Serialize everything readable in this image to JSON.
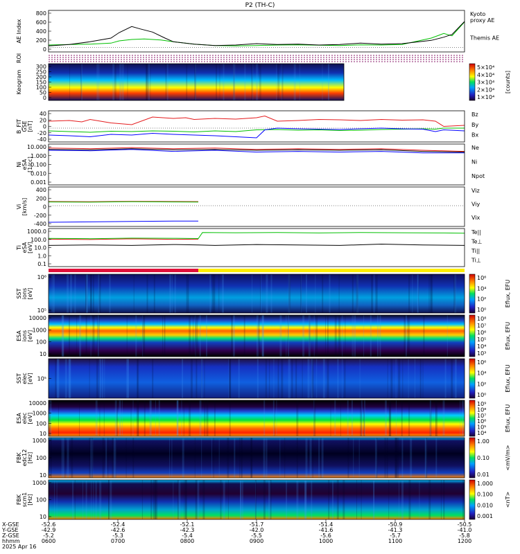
{
  "title": "P2 (TH-C)",
  "colors": {
    "black": "#000000",
    "red": "#e41a1c",
    "green": "#00c000",
    "blue": "#0000ff",
    "kyoto": "#00c000",
    "bar_red": "#e0103a",
    "bar_yellow": "#ffee00"
  },
  "chart_data": [
    {
      "type": "line",
      "panel": "ae",
      "ylabel": "AE Index",
      "yticks": [
        "800",
        "600",
        "400",
        "200",
        "0"
      ],
      "ylim": [
        -100,
        800
      ],
      "series": [
        {
          "name": "Kyoto",
          "label_line2": "proxy AE",
          "color": "green",
          "x": [
            0,
            0.05,
            0.1,
            0.15,
            0.17,
            0.2,
            0.23,
            0.27,
            0.3,
            0.35,
            0.4,
            0.45,
            0.5,
            0.55,
            0.6,
            0.65,
            0.7,
            0.75,
            0.8,
            0.85,
            0.88,
            0.92,
            0.95,
            0.97,
            1.0
          ],
          "y": [
            50,
            60,
            70,
            90,
            140,
            170,
            180,
            160,
            120,
            70,
            40,
            30,
            40,
            50,
            55,
            45,
            40,
            55,
            50,
            60,
            120,
            200,
            300,
            250,
            550
          ]
        },
        {
          "name": "Themis AE",
          "color": "black",
          "x": [
            0,
            0.05,
            0.1,
            0.15,
            0.17,
            0.2,
            0.22,
            0.25,
            0.28,
            0.3,
            0.35,
            0.4,
            0.45,
            0.5,
            0.55,
            0.6,
            0.65,
            0.7,
            0.75,
            0.8,
            0.85,
            0.88,
            0.92,
            0.95,
            0.97,
            1.0
          ],
          "y": [
            30,
            60,
            120,
            200,
            320,
            450,
            400,
            330,
            200,
            120,
            70,
            40,
            50,
            80,
            60,
            70,
            50,
            60,
            90,
            70,
            80,
            110,
            150,
            220,
            280,
            560
          ]
        }
      ]
    },
    {
      "type": "heatmap",
      "panel": "roi",
      "ylabel": "ROI"
    },
    {
      "type": "heatmap",
      "panel": "keogram",
      "ylabel": "Keogram",
      "yticks": [
        "300",
        "250",
        "200",
        "150",
        "100",
        "50",
        "0"
      ],
      "colorbar_ticks": [
        "5×10⁴",
        "4×10⁴",
        "3×10⁴",
        "2×10⁴",
        "1×10⁴"
      ],
      "colorbar_label": "[counts]",
      "coverage_end_fraction": 0.71
    },
    {
      "type": "line",
      "panel": "bfield",
      "ylabel": "B_FIT",
      "ylabel2": "GSE",
      "ylabel3": "[nT]",
      "yticks": [
        "40",
        "20",
        "0",
        "-20",
        "-40"
      ],
      "ylim": [
        -40,
        50
      ],
      "series": [
        {
          "name": "Bz",
          "color": "red",
          "x": [
            0,
            0.05,
            0.08,
            0.1,
            0.15,
            0.2,
            0.25,
            0.3,
            0.33,
            0.35,
            0.4,
            0.45,
            0.5,
            0.52,
            0.55,
            0.6,
            0.65,
            0.7,
            0.75,
            0.8,
            0.85,
            0.9,
            0.93,
            0.95,
            1.0
          ],
          "y": [
            20,
            22,
            18,
            25,
            15,
            10,
            32,
            28,
            30,
            25,
            28,
            26,
            30,
            35,
            20,
            22,
            25,
            24,
            22,
            25,
            23,
            24,
            20,
            5,
            8
          ]
        },
        {
          "name": "By",
          "color": "green",
          "x": [
            0,
            0.05,
            0.1,
            0.15,
            0.2,
            0.25,
            0.3,
            0.35,
            0.4,
            0.45,
            0.5,
            0.55,
            0.6,
            0.65,
            0.7,
            0.75,
            0.8,
            0.85,
            0.9,
            0.93,
            0.95,
            1.0
          ],
          "y": [
            -8,
            -10,
            -12,
            -9,
            -10,
            -8,
            -9,
            -11,
            -8,
            -10,
            -5,
            -4,
            -6,
            -5,
            -7,
            -6,
            -4,
            -3,
            -2,
            -3,
            0,
            0
          ]
        },
        {
          "name": "Bx",
          "color": "blue",
          "x": [
            0,
            0.05,
            0.1,
            0.15,
            0.2,
            0.25,
            0.3,
            0.35,
            0.4,
            0.45,
            0.5,
            0.52,
            0.55,
            0.6,
            0.65,
            0.7,
            0.75,
            0.8,
            0.85,
            0.9,
            0.93,
            0.95,
            1.0
          ],
          "y": [
            -20,
            -22,
            -25,
            -18,
            -20,
            -15,
            -18,
            -20,
            -22,
            -25,
            -28,
            -5,
            0,
            -2,
            -3,
            -4,
            -2,
            0,
            -2,
            -3,
            -10,
            -5,
            -8
          ]
        }
      ]
    },
    {
      "type": "line",
      "panel": "density",
      "ylabel": "Ni",
      "ylabel2": "eSA",
      "ylabel3": "[1/cc]",
      "yticks": [
        "10.000",
        "1.000",
        "0.100",
        "0.010",
        "0.001"
      ],
      "log": true,
      "ylim": [
        0.0005,
        20
      ],
      "series": [
        {
          "name": "Ne",
          "color": "red",
          "x": [
            0,
            0.1,
            0.2,
            0.3,
            0.4,
            0.5,
            0.6,
            0.7,
            0.8,
            0.9,
            1.0
          ],
          "y": [
            7,
            6,
            8,
            6,
            7,
            5,
            6,
            5,
            6,
            4,
            3
          ]
        },
        {
          "name": "Ni",
          "color": "black",
          "x": [
            0,
            0.1,
            0.2,
            0.3,
            0.4,
            0.5,
            0.6,
            0.7,
            0.8,
            0.9,
            1.0
          ],
          "y": [
            5,
            4.5,
            6,
            4.5,
            5,
            4,
            4.5,
            4,
            4.5,
            3,
            2.5
          ]
        },
        {
          "name": "Npot",
          "color": "blue",
          "x": [
            0,
            0.1,
            0.2,
            0.3,
            0.4,
            0.5,
            0.6,
            0.7,
            0.8,
            0.9,
            1.0
          ],
          "y": [
            4,
            3.5,
            5,
            3,
            4,
            2.5,
            3,
            2.5,
            3,
            2,
            2
          ]
        }
      ]
    },
    {
      "type": "line",
      "panel": "velocity",
      "ylabel": "Vi",
      "ylabel3": "[km/s]",
      "yticks": [
        "400",
        "200",
        "0",
        "-200",
        "-400"
      ],
      "ylim": [
        -500,
        450
      ],
      "series": [
        {
          "name": "Viz",
          "color": "red",
          "x": [
            0,
            0.1,
            0.2,
            0.3,
            0.36
          ],
          "y": [
            100,
            95,
            105,
            100,
            98
          ]
        },
        {
          "name": "Viy",
          "color": "green",
          "x": [
            0,
            0.1,
            0.2,
            0.3,
            0.36
          ],
          "y": [
            90,
            85,
            95,
            90,
            88
          ]
        },
        {
          "name": "Vix",
          "color": "blue",
          "x": [
            0,
            0.1,
            0.2,
            0.3,
            0.36
          ],
          "y": [
            -400,
            -390,
            -380,
            -370,
            -370
          ]
        }
      ]
    },
    {
      "type": "line",
      "panel": "temperature",
      "ylabel": "Ti",
      "ylabel2": "eSA",
      "ylabel3": "[eV]",
      "yticks": [
        "1000.0",
        "100.0",
        "10.0",
        "1.0",
        "0.1"
      ],
      "log": true,
      "ylim": [
        0.05,
        5000
      ],
      "series": [
        {
          "name": "Te||",
          "color": "black",
          "x": [
            0,
            0.1,
            0.2,
            0.3,
            0.36,
            0.4,
            0.5,
            0.6,
            0.7,
            0.8,
            0.9,
            1.0
          ],
          "y": [
            30,
            35,
            30,
            40,
            35,
            30,
            40,
            35,
            30,
            45,
            35,
            30
          ]
        },
        {
          "name": "Te⊥",
          "color": "red",
          "x": [
            0,
            0.1,
            0.2,
            0.3,
            0.36
          ],
          "y": [
            200,
            180,
            220,
            190,
            200
          ]
        },
        {
          "name": "Ti||",
          "color": "green",
          "x": [
            0,
            0.1,
            0.2,
            0.3,
            0.36,
            0.37,
            0.45,
            0.55,
            0.65,
            0.75,
            0.85,
            0.95,
            1.0
          ],
          "y": [
            250,
            230,
            270,
            260,
            240,
            1500,
            1400,
            1500,
            1300,
            1500,
            1400,
            1300,
            1200
          ]
        },
        {
          "name": "Ti⊥",
          "color": "blue",
          "x": [],
          "y": []
        }
      ]
    },
    {
      "type": "heatmap",
      "panel": "sst_ion",
      "ylabel": "SST",
      "ylabel2": "ions",
      "ylabel3": "[eV]",
      "yticks": [
        "10⁶",
        "10⁵"
      ],
      "colorbar_ticks": [
        "10⁶",
        "10⁴",
        "10²",
        "10⁰"
      ],
      "colorbar_label": "Eflux, EFU"
    },
    {
      "type": "heatmap",
      "panel": "esa_ion",
      "ylabel": "ESA",
      "ylabel2": "ions",
      "ylabel3": "[eV]",
      "yticks": [
        "10000",
        "1000",
        "100",
        "10"
      ],
      "colorbar_ticks": [
        "10⁸",
        "10⁷",
        "10⁶",
        "10⁵",
        "10⁴",
        "10³"
      ],
      "colorbar_label": "Eflux, EFU"
    },
    {
      "type": "heatmap",
      "panel": "sst_elec",
      "ylabel": "SST",
      "ylabel2": "elec",
      "ylabel3": "[eV]",
      "yticks": [
        "10⁵"
      ],
      "colorbar_ticks": [
        "10⁶",
        "10⁴",
        "10²",
        "10⁰"
      ],
      "colorbar_label": "Eflux, EFU"
    },
    {
      "type": "heatmap",
      "panel": "esa_elec",
      "ylabel": "ESA",
      "ylabel2": "elec",
      "ylabel3": "[eV]",
      "yticks": [
        "10000",
        "1000",
        "100",
        "10"
      ],
      "colorbar_ticks": [
        "10⁹",
        "10⁸",
        "10⁷",
        "10⁶",
        "10⁵",
        "10⁴"
      ],
      "colorbar_label": "Eflux, EFU"
    },
    {
      "type": "heatmap",
      "panel": "fbk_e",
      "ylabel": "FBK",
      "ylabel2": "edc12",
      "ylabel3": "[Hz]",
      "yticks": [
        "1000",
        "100",
        "10"
      ],
      "colorbar_ticks": [
        "1.00",
        "0.10",
        "0.01"
      ],
      "colorbar_label": "<mV/m>"
    },
    {
      "type": "heatmap",
      "panel": "fbk_b",
      "ylabel": "FBK",
      "ylabel2": "scm1",
      "ylabel3": "[Hz]",
      "yticks": [
        "1000",
        "100",
        "10"
      ],
      "colorbar_ticks": [
        "1.000",
        "0.100",
        "0.010",
        "0.001"
      ],
      "colorbar_label": "<nT>"
    }
  ],
  "mode_bar": {
    "red_end_fraction": 0.36
  },
  "x_axis": {
    "row_labels": [
      "X-GSE",
      "Y-GSE",
      "Z-GSE",
      "hhmm",
      "2025 Apr 16"
    ],
    "ticks": [
      {
        "x": "-52.6",
        "y": "-42.9",
        "z": "-5.2",
        "t": "0600"
      },
      {
        "x": "-52.4",
        "y": "-42.6",
        "z": "-5.3",
        "t": "0700"
      },
      {
        "x": "-52.1",
        "y": "-42.3",
        "z": "-5.4",
        "t": "0800"
      },
      {
        "x": "-51.7",
        "y": "-42.0",
        "z": "-5.5",
        "t": "0900"
      },
      {
        "x": "-51.4",
        "y": "-41.6",
        "z": "-5.6",
        "t": "1000"
      },
      {
        "x": "-50.9",
        "y": "-41.3",
        "z": "-5.7",
        "t": "1100"
      },
      {
        "x": "-50.5",
        "y": "-41.0",
        "z": "-5.8",
        "t": "1200"
      }
    ]
  }
}
